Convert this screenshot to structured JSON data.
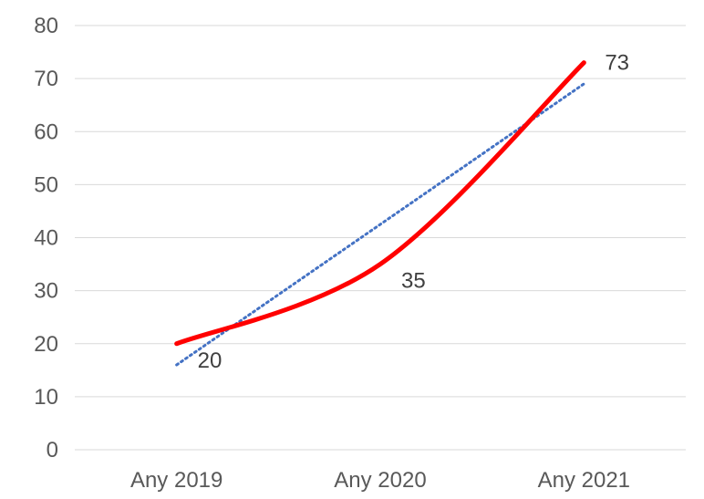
{
  "chart_data": {
    "type": "line",
    "categories": [
      "Any 2019",
      "Any 2020",
      "Any 2021"
    ],
    "series": [
      {
        "values": [
          20,
          35,
          73
        ],
        "color": "#ff0000",
        "smooth": true,
        "data_labels": [
          "20",
          "35",
          "73"
        ]
      }
    ],
    "trendline": {
      "type": "linear",
      "color": "#4472c4",
      "style": "dotted",
      "start_value": 16,
      "end_value": 69
    },
    "ylim": [
      0,
      80
    ],
    "yticks": [
      0,
      10,
      20,
      30,
      40,
      50,
      60,
      70,
      80
    ],
    "grid": {
      "horizontal": true,
      "color": "#d9d9d9"
    },
    "legend": "none",
    "title": "",
    "xlabel": "",
    "ylabel": ""
  }
}
